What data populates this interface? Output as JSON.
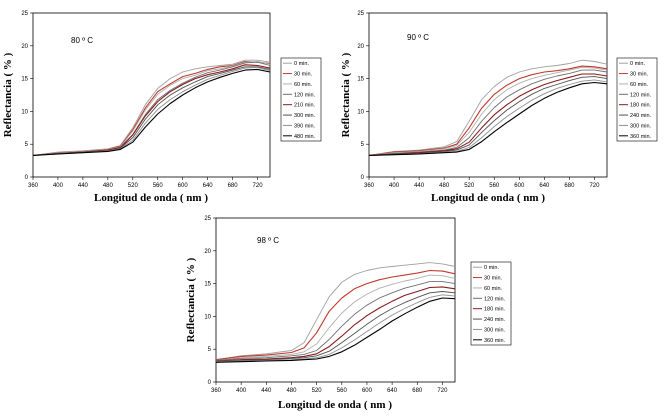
{
  "figure": {
    "chart_data": [
      {
        "type": "line",
        "annotation": "80 º C",
        "xlabel": "Longitud de onda ( nm )",
        "ylabel": "Reflectancia ( % )",
        "xlim": [
          360,
          740
        ],
        "ylim": [
          0,
          25
        ],
        "xticks": [
          "360",
          "400",
          "440",
          "480",
          "520",
          "560",
          "600",
          "640",
          "680",
          "720"
        ],
        "yticks": [
          "0",
          "5",
          "10",
          "15",
          "20",
          "25"
        ],
        "x": [
          360,
          400,
          440,
          480,
          500,
          520,
          540,
          560,
          580,
          600,
          620,
          640,
          660,
          680,
          700,
          720,
          740
        ],
        "legend_position": "right",
        "series": [
          {
            "name": "0 min.",
            "color": "#a0a0a0",
            "values": [
              3.3,
              3.8,
              4.0,
              4.3,
              4.8,
              7.5,
              11.0,
              13.5,
              15.0,
              16.0,
              16.5,
              16.8,
              17.0,
              17.2,
              17.8,
              17.8,
              17.5
            ]
          },
          {
            "name": "30 min.",
            "color": "#c0392b",
            "values": [
              3.3,
              3.7,
              3.9,
              4.2,
              4.7,
              7.2,
              10.5,
              13.0,
              14.2,
              15.3,
              15.8,
              16.4,
              16.8,
              17.0,
              17.6,
              17.5,
              17.3
            ]
          },
          {
            "name": "60 min.",
            "color": "#b0b0b0",
            "values": [
              3.3,
              3.7,
              3.9,
              4.2,
              4.6,
              7.0,
              10.2,
              12.6,
              14.0,
              15.0,
              15.5,
              16.2,
              16.5,
              16.9,
              17.5,
              17.6,
              17.2
            ]
          },
          {
            "name": "120 min.",
            "color": "#707070",
            "values": [
              3.3,
              3.6,
              3.8,
              4.1,
              4.5,
              6.5,
              9.5,
              11.8,
              13.2,
              14.3,
              15.2,
              15.9,
              16.3,
              16.8,
              17.4,
              17.5,
              17.0
            ]
          },
          {
            "name": "210 min.",
            "color": "#8b1a1a",
            "values": [
              3.3,
              3.6,
              3.8,
              4.1,
              4.5,
              6.4,
              9.3,
              11.5,
              13.0,
              14.1,
              15.0,
              15.6,
              16.0,
              16.5,
              17.1,
              17.0,
              16.6
            ]
          },
          {
            "name": "300 min.",
            "color": "#505050",
            "values": [
              3.3,
              3.6,
              3.8,
              4.0,
              4.4,
              6.0,
              8.8,
              11.0,
              12.5,
              13.6,
              14.5,
              15.3,
              15.8,
              16.3,
              16.8,
              16.8,
              16.4
            ]
          },
          {
            "name": "390 min.",
            "color": "#909090",
            "values": [
              3.3,
              3.5,
              3.7,
              4.0,
              4.3,
              5.6,
              8.2,
              10.3,
              11.8,
              13.0,
              14.0,
              14.9,
              15.5,
              16.1,
              16.6,
              16.7,
              16.2
            ]
          },
          {
            "name": "480 min.",
            "color": "#000000",
            "values": [
              3.3,
              3.5,
              3.7,
              3.9,
              4.2,
              5.3,
              7.6,
              9.6,
              11.2,
              12.5,
              13.6,
              14.5,
              15.2,
              15.8,
              16.3,
              16.4,
              16.0
            ]
          }
        ]
      },
      {
        "type": "line",
        "annotation": "90 º C",
        "xlabel": "Longitud de onda ( nm )",
        "ylabel": "Reflectancia ( % )",
        "xlim": [
          360,
          740
        ],
        "ylim": [
          0,
          25
        ],
        "xticks": [
          "360",
          "400",
          "440",
          "480",
          "520",
          "560",
          "600",
          "640",
          "680",
          "720"
        ],
        "yticks": [
          "0",
          "5",
          "10",
          "15",
          "20",
          "25"
        ],
        "x": [
          360,
          400,
          440,
          480,
          500,
          520,
          540,
          560,
          580,
          600,
          620,
          640,
          660,
          680,
          700,
          720,
          740
        ],
        "legend_position": "right",
        "series": [
          {
            "name": "0 min.",
            "color": "#a0a0a0",
            "values": [
              3.3,
              3.9,
              4.1,
              4.6,
              5.4,
              8.5,
              11.8,
              13.8,
              15.2,
              16.0,
              16.5,
              16.8,
              17.0,
              17.3,
              17.8,
              17.6,
              17.2
            ]
          },
          {
            "name": "30 min.",
            "color": "#c0392b",
            "values": [
              3.3,
              3.8,
              4.0,
              4.4,
              5.0,
              7.5,
              10.5,
              12.6,
              14.0,
              15.0,
              15.6,
              16.0,
              16.2,
              16.5,
              16.9,
              16.8,
              16.5
            ]
          },
          {
            "name": "60 min.",
            "color": "#b0b0b0",
            "values": [
              3.3,
              3.7,
              3.9,
              4.3,
              4.8,
              6.8,
              9.6,
              11.8,
              13.3,
              14.3,
              15.0,
              15.5,
              15.9,
              16.3,
              16.7,
              16.6,
              16.3
            ]
          },
          {
            "name": "120 min.",
            "color": "#707070",
            "values": [
              3.3,
              3.6,
              3.8,
              4.1,
              4.5,
              6.0,
              8.5,
              10.6,
              12.2,
              13.3,
              14.2,
              14.9,
              15.4,
              15.8,
              16.3,
              16.3,
              16.0
            ]
          },
          {
            "name": "180 min.",
            "color": "#8b1a1a",
            "values": [
              3.3,
              3.5,
              3.7,
              4.0,
              4.3,
              5.3,
              7.5,
              9.5,
              11.0,
              12.3,
              13.3,
              14.1,
              14.7,
              15.2,
              15.7,
              15.7,
              15.4
            ]
          },
          {
            "name": "240 min.",
            "color": "#505050",
            "values": [
              3.3,
              3.5,
              3.6,
              3.9,
              4.1,
              4.9,
              6.8,
              8.6,
              10.2,
              11.5,
              12.6,
              13.5,
              14.1,
              14.7,
              15.2,
              15.3,
              15.0
            ]
          },
          {
            "name": "300 min.",
            "color": "#909090",
            "values": [
              3.3,
              3.4,
              3.5,
              3.8,
              3.9,
              4.5,
              6.0,
              7.7,
              9.2,
              10.5,
              11.7,
              12.7,
              13.5,
              14.1,
              14.6,
              14.8,
              14.5
            ]
          },
          {
            "name": "360 min.",
            "color": "#000000",
            "values": [
              3.3,
              3.4,
              3.5,
              3.7,
              3.8,
              4.2,
              5.4,
              6.9,
              8.3,
              9.6,
              10.9,
              12.0,
              12.9,
              13.6,
              14.2,
              14.4,
              14.2
            ]
          }
        ]
      },
      {
        "type": "line",
        "annotation": "98 º C",
        "xlabel": "Longitud de onda ( nm )",
        "ylabel": "Reflectancia ( % )",
        "xlim": [
          360,
          740
        ],
        "ylim": [
          0,
          25
        ],
        "xticks": [
          "360",
          "400",
          "440",
          "480",
          "520",
          "560",
          "600",
          "640",
          "680",
          "720"
        ],
        "yticks": [
          "0",
          "5",
          "10",
          "15",
          "20",
          "25"
        ],
        "x": [
          360,
          400,
          440,
          480,
          500,
          520,
          540,
          560,
          580,
          600,
          620,
          640,
          660,
          680,
          700,
          720,
          740
        ],
        "legend_position": "right",
        "series": [
          {
            "name": "0 min.",
            "color": "#a0a0a0",
            "values": [
              3.4,
              4.0,
              4.3,
              4.8,
              6.0,
              9.5,
              13.0,
              15.2,
              16.4,
              17.0,
              17.4,
              17.6,
              17.8,
              18.0,
              18.2,
              18.0,
              17.6
            ]
          },
          {
            "name": "30 min.",
            "color": "#c0392b",
            "values": [
              3.4,
              3.9,
              4.1,
              4.5,
              5.2,
              7.5,
              10.8,
              12.8,
              14.2,
              15.0,
              15.6,
              16.0,
              16.3,
              16.6,
              17.0,
              16.9,
              16.5
            ]
          },
          {
            "name": "60 min.",
            "color": "#b0b0b0",
            "values": [
              3.3,
              3.7,
              3.9,
              4.2,
              4.6,
              5.8,
              8.3,
              10.5,
              12.2,
              13.4,
              14.3,
              14.9,
              15.4,
              15.8,
              16.3,
              16.2,
              15.8
            ]
          },
          {
            "name": "120 min.",
            "color": "#707070",
            "values": [
              3.3,
              3.6,
              3.7,
              4.0,
              4.2,
              4.8,
              6.5,
              8.5,
              10.3,
              11.7,
              12.8,
              13.6,
              14.3,
              14.8,
              15.3,
              15.3,
              15.0
            ]
          },
          {
            "name": "180 min.",
            "color": "#8b1a1a",
            "values": [
              3.2,
              3.4,
              3.5,
              3.7,
              3.9,
              4.3,
              5.4,
              7.0,
              8.7,
              10.1,
              11.3,
              12.3,
              13.2,
              13.8,
              14.4,
              14.5,
              14.2
            ]
          },
          {
            "name": "240 min.",
            "color": "#505050",
            "values": [
              3.2,
              3.3,
              3.4,
              3.6,
              3.7,
              4.0,
              4.7,
              6.0,
              7.4,
              8.8,
              10.1,
              11.2,
              12.1,
              12.9,
              13.6,
              13.8,
              13.6
            ]
          },
          {
            "name": "300 min.",
            "color": "#909090",
            "values": [
              3.1,
              3.2,
              3.3,
              3.4,
              3.5,
              3.7,
              4.2,
              5.2,
              6.4,
              7.7,
              9.0,
              10.2,
              11.2,
              12.1,
              12.9,
              13.3,
              13.1
            ]
          },
          {
            "name": "360 min.",
            "color": "#000000",
            "values": [
              3.0,
              3.1,
              3.2,
              3.3,
              3.4,
              3.5,
              3.9,
              4.6,
              5.6,
              6.8,
              8.0,
              9.3,
              10.4,
              11.4,
              12.3,
              12.8,
              12.7
            ]
          }
        ]
      }
    ]
  }
}
